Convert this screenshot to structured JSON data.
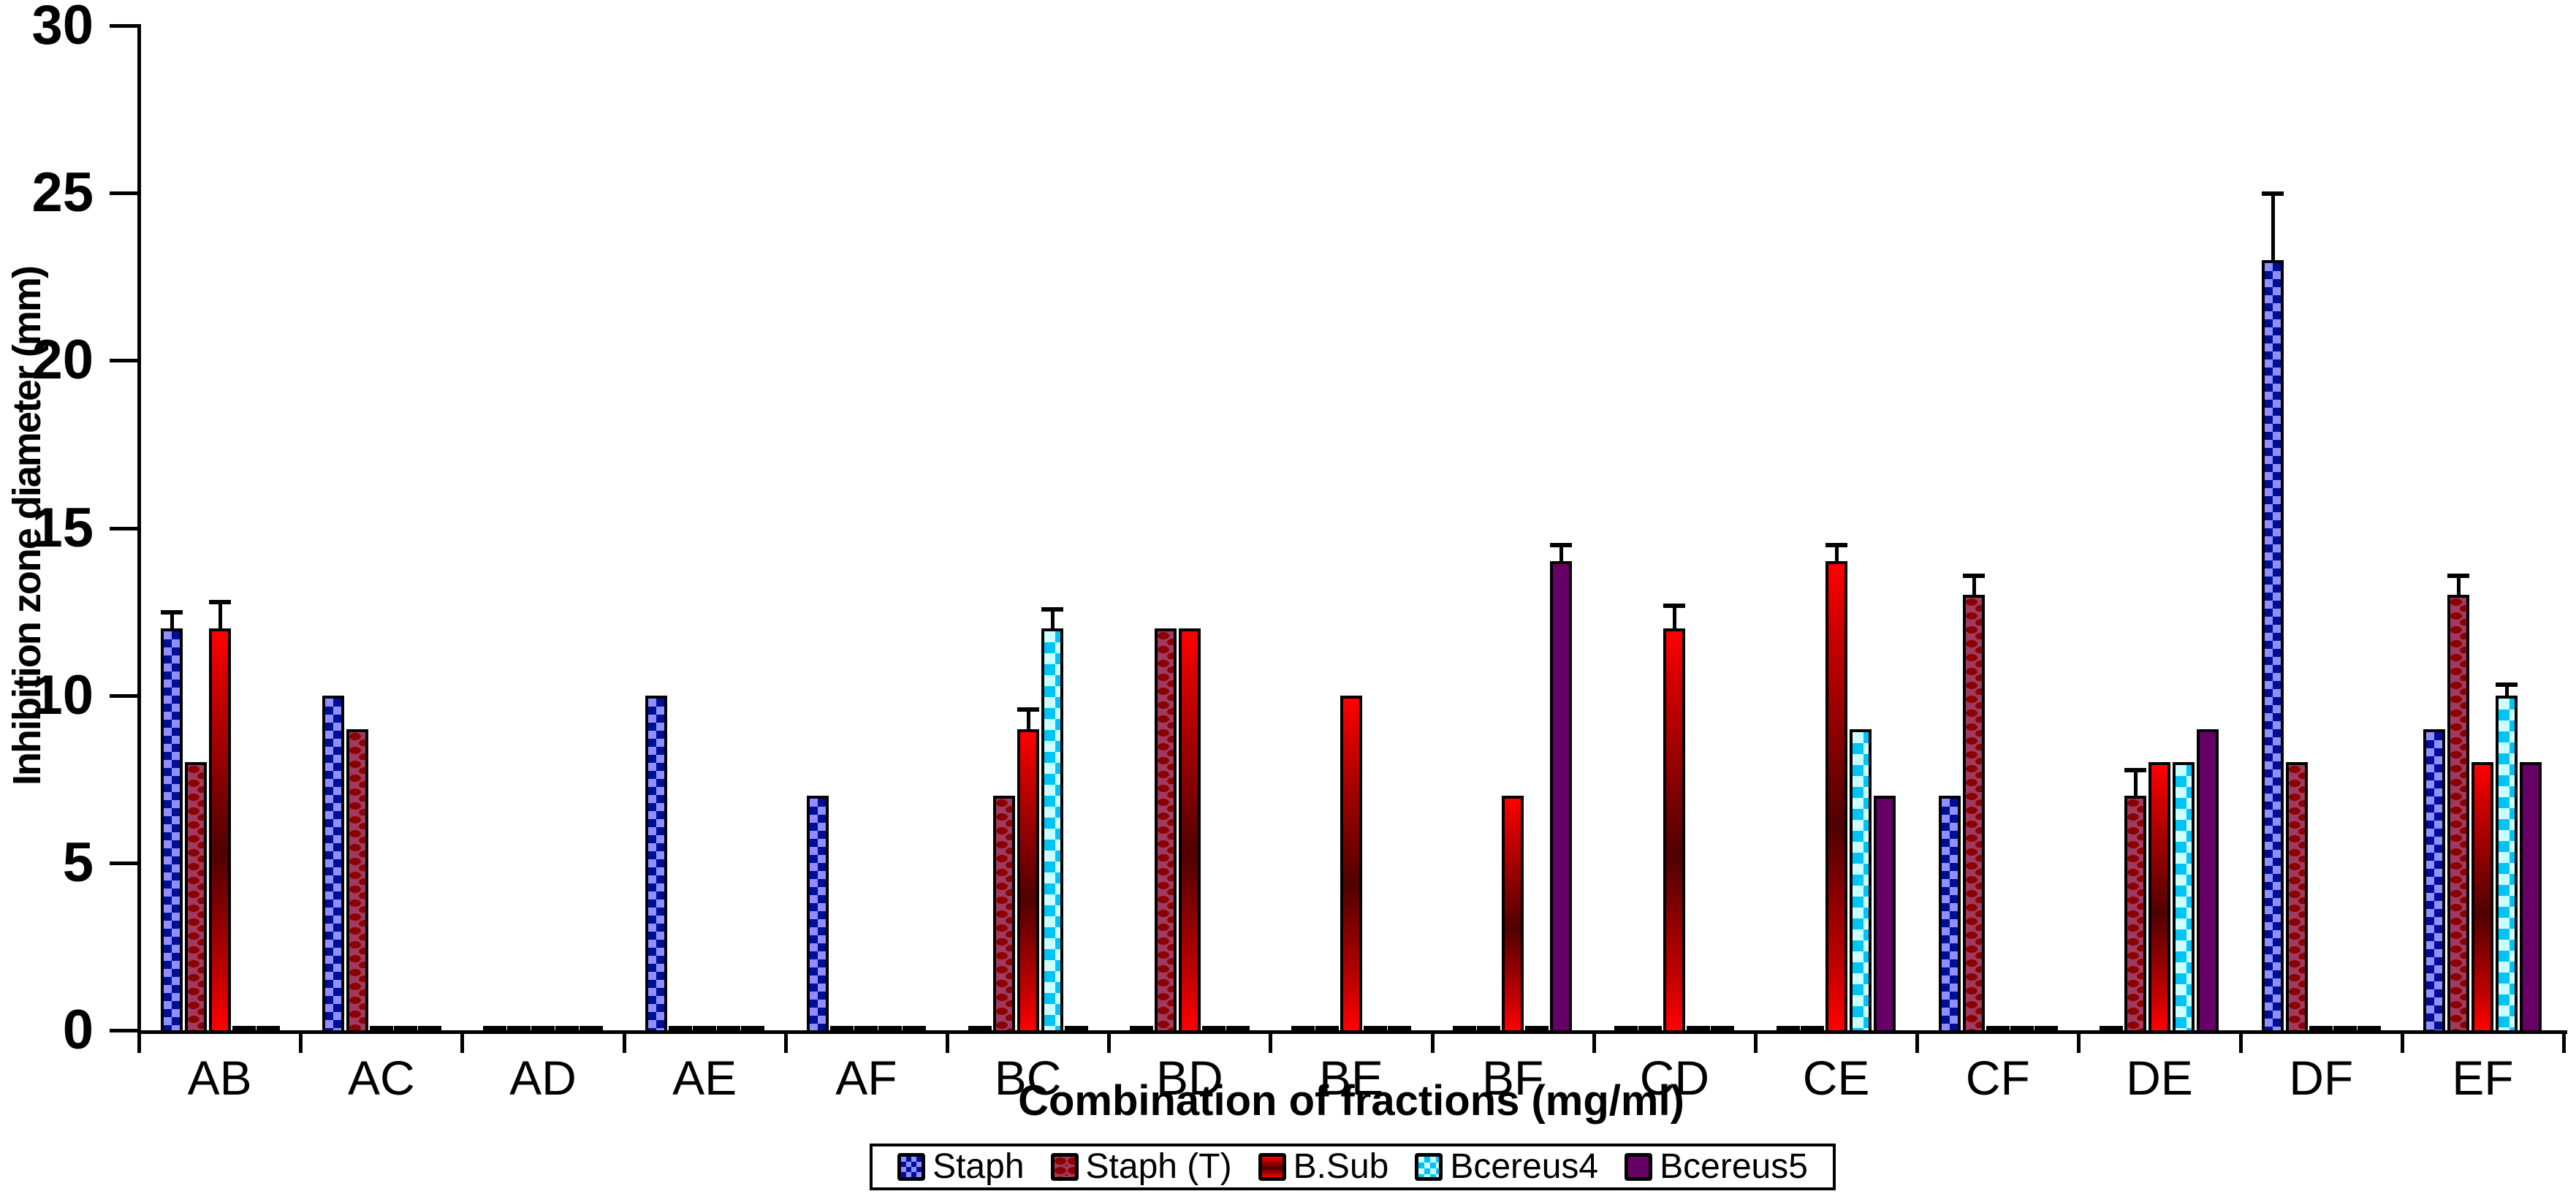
{
  "chart_data": {
    "type": "bar",
    "title": "",
    "xlabel": "Combination of fractions (mg/ml)",
    "ylabel": "Inhibition zone diameter (mm)",
    "ylim": [
      0,
      30
    ],
    "yticks": [
      0,
      5,
      10,
      15,
      20,
      25,
      30
    ],
    "grid": "off",
    "legend_position": "bottom",
    "categories": [
      "AB",
      "AC",
      "AD",
      "AE",
      "AF",
      "BC",
      "BD",
      "BE",
      "BF",
      "CD",
      "CE",
      "CF",
      "DE",
      "DF",
      "EF"
    ],
    "series": [
      {
        "name": "Staph",
        "values": [
          12,
          10,
          0,
          10,
          7,
          0,
          0,
          0,
          0,
          0,
          0,
          7,
          0,
          23,
          9
        ],
        "errors": [
          0.5,
          0,
          0,
          0,
          0,
          0,
          0,
          0,
          0,
          0,
          0,
          0,
          0,
          2,
          0
        ],
        "color_base": "#8f8fff",
        "color_accent": "#000e96",
        "pattern": "checker"
      },
      {
        "name": "Staph (T)",
        "values": [
          8,
          9,
          0,
          0,
          0,
          7,
          12,
          0,
          0,
          0,
          0,
          13,
          7,
          8,
          13
        ],
        "errors": [
          0,
          0,
          0,
          0,
          0,
          0,
          0,
          0,
          0,
          0,
          0,
          0.6,
          0.8,
          0,
          0.6
        ],
        "color_base": "#a03a5e",
        "color_accent": "#8b0000",
        "pattern": "dashes"
      },
      {
        "name": "B.Sub",
        "values": [
          12,
          0,
          0,
          0,
          0,
          9,
          12,
          10,
          7,
          12,
          14,
          0,
          8,
          0,
          8
        ],
        "errors": [
          0.8,
          0,
          0,
          0,
          0,
          0.6,
          0,
          0,
          0,
          0.7,
          0.5,
          0,
          0,
          0,
          0
        ],
        "color_base": "#ff0000",
        "color_accent": "#500000",
        "pattern": "vertical-gradient"
      },
      {
        "name": "Bcereus4",
        "values": [
          0,
          0,
          0,
          0,
          0,
          12,
          0,
          0,
          0,
          0,
          9,
          0,
          8,
          0,
          10
        ],
        "errors": [
          0,
          0,
          0,
          0,
          0,
          0.6,
          0,
          0,
          0,
          0,
          0,
          0,
          0,
          0,
          0.35
        ],
        "color_base": "#ccffff",
        "color_accent": "#00c4f5",
        "pattern": "checker"
      },
      {
        "name": "Bcereus5",
        "values": [
          0,
          0,
          0,
          0,
          0,
          0,
          0,
          0,
          14,
          0,
          7,
          0,
          9,
          0,
          8
        ],
        "errors": [
          0,
          0,
          0,
          0,
          0,
          0,
          0,
          0,
          0.5,
          0,
          0,
          0,
          0,
          0,
          0
        ],
        "color_base": "#660066",
        "color_accent": "#660066",
        "pattern": "solid"
      }
    ]
  },
  "legend": {
    "items": [
      "Staph",
      "Staph (T)",
      "B.Sub",
      "Bcereus4",
      "Bcereus5"
    ]
  }
}
